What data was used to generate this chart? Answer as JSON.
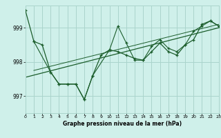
{
  "background_color": "#cff0ea",
  "grid_color": "#aad4cc",
  "line_color": "#1a5c2a",
  "xlabel": "Graphe pression niveau de la mer (hPa)",
  "xlim": [
    0,
    23
  ],
  "ylim": [
    996.5,
    999.65
  ],
  "yticks": [
    997,
    998,
    999
  ],
  "xticks": [
    0,
    1,
    2,
    3,
    4,
    5,
    6,
    7,
    8,
    9,
    10,
    11,
    12,
    13,
    14,
    15,
    16,
    17,
    18,
    19,
    20,
    21,
    22,
    23
  ],
  "series1_x": [
    0,
    1,
    2,
    3,
    4,
    5,
    6,
    7,
    8,
    9,
    10,
    11,
    12,
    13,
    14,
    15,
    16,
    17,
    18,
    19,
    20,
    21,
    22,
    23
  ],
  "series1_y": [
    999.5,
    998.6,
    998.5,
    997.7,
    997.35,
    997.35,
    997.35,
    996.9,
    997.6,
    998.2,
    998.35,
    998.3,
    998.2,
    998.1,
    998.05,
    998.3,
    998.55,
    998.3,
    998.2,
    998.5,
    998.65,
    999.1,
    999.2,
    999.05
  ],
  "series2_x": [
    1,
    3,
    4,
    5,
    6,
    7,
    8,
    10,
    11,
    12,
    13,
    14,
    15,
    16,
    17,
    18,
    19,
    20,
    21,
    22,
    23
  ],
  "series2_y": [
    998.6,
    997.7,
    997.35,
    997.35,
    997.35,
    996.9,
    997.6,
    998.35,
    999.05,
    998.55,
    998.05,
    998.05,
    998.45,
    998.65,
    998.4,
    998.3,
    998.5,
    998.9,
    999.05,
    999.2,
    999.05
  ],
  "trend_x": [
    0,
    23
  ],
  "trend_y": [
    997.55,
    999.0
  ],
  "trend2_x": [
    1,
    23
  ],
  "trend2_y": [
    997.75,
    999.1
  ]
}
